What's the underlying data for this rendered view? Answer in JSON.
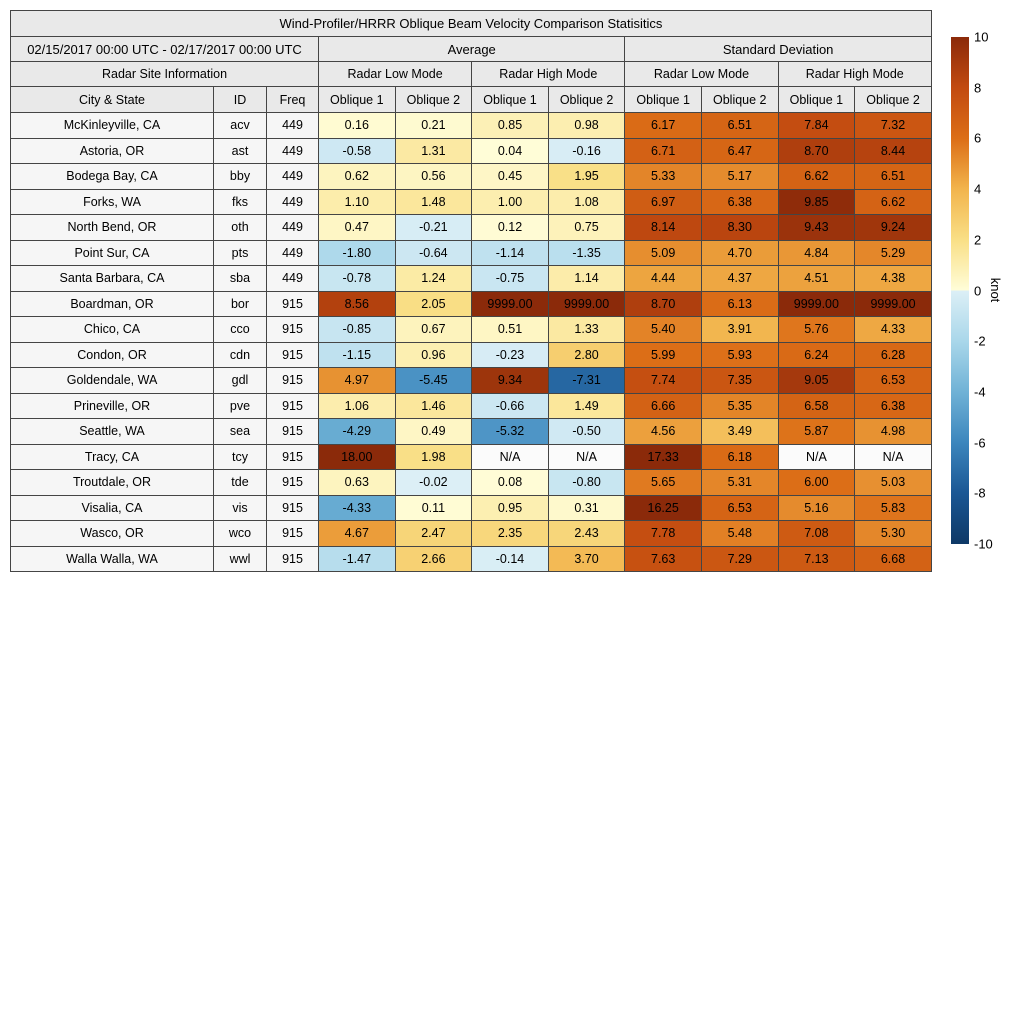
{
  "title": "Wind-Profiler/HRRR Oblique Beam Velocity Comparison Statisitics",
  "period": "02/15/2017 00:00 UTC - 02/17/2017 00:00 UTC",
  "header": {
    "average": "Average",
    "std_dev": "Standard Deviation",
    "site_info": "Radar Site Information",
    "low_mode": "Radar Low Mode",
    "high_mode": "Radar High Mode",
    "city": "City & State",
    "id": "ID",
    "freq": "Freq",
    "oblique1": "Oblique 1",
    "oblique2": "Oblique 2"
  },
  "colors": {
    "header_bg": "#e9e9e9",
    "site_bg": "#f6f6f6",
    "na_bg": "#fbfbfb",
    "border": "#454545",
    "text": "#000000",
    "page_bg": "#ffffff"
  },
  "colorbar": {
    "label": "knot",
    "min": -10,
    "max": 10,
    "ticks": [
      10,
      8,
      6,
      4,
      2,
      0,
      -2,
      -4,
      -6,
      -8,
      -10
    ],
    "stops": [
      {
        "v": -10,
        "c": "#0E3866"
      },
      {
        "v": -8,
        "c": "#1A5794"
      },
      {
        "v": -6,
        "c": "#3C86BD"
      },
      {
        "v": -4,
        "c": "#70B2D6"
      },
      {
        "v": -2,
        "c": "#A9D7EA"
      },
      {
        "v": -0.02,
        "c": "#DCEFF6"
      },
      {
        "v": 0.02,
        "c": "#FFFDD8"
      },
      {
        "v": 2,
        "c": "#F9DF86"
      },
      {
        "v": 4,
        "c": "#F2B44C"
      },
      {
        "v": 6,
        "c": "#DC6E17"
      },
      {
        "v": 8,
        "c": "#C24A10"
      },
      {
        "v": 10,
        "c": "#8B2A0A"
      }
    ]
  },
  "chart_data": {
    "type": "heatmap",
    "title": "Wind-Profiler/HRRR Oblique Beam Velocity Comparison Statisitics",
    "period": "02/15/2017 00:00 UTC - 02/17/2017 00:00 UTC",
    "unit": "knot",
    "value_range": [
      -10,
      10
    ],
    "value_columns": [
      "Average Radar Low Mode Oblique 1",
      "Average Radar Low Mode Oblique 2",
      "Average Radar High Mode Oblique 1",
      "Average Radar High Mode Oblique 2",
      "Standard Deviation Radar Low Mode Oblique 1",
      "Standard Deviation Radar Low Mode Oblique 2",
      "Standard Deviation Radar High Mode Oblique 1",
      "Standard Deviation Radar High Mode Oblique 2"
    ],
    "rows": [
      {
        "city": "McKinleyville, CA",
        "id": "acv",
        "freq": "449",
        "values": [
          "0.16",
          "0.21",
          "0.85",
          "0.98",
          "6.17",
          "6.51",
          "7.84",
          "7.32"
        ]
      },
      {
        "city": "Astoria, OR",
        "id": "ast",
        "freq": "449",
        "values": [
          "-0.58",
          "1.31",
          "0.04",
          "-0.16",
          "6.71",
          "6.47",
          "8.70",
          "8.44"
        ]
      },
      {
        "city": "Bodega Bay, CA",
        "id": "bby",
        "freq": "449",
        "values": [
          "0.62",
          "0.56",
          "0.45",
          "1.95",
          "5.33",
          "5.17",
          "6.62",
          "6.51"
        ]
      },
      {
        "city": "Forks, WA",
        "id": "fks",
        "freq": "449",
        "values": [
          "1.10",
          "1.48",
          "1.00",
          "1.08",
          "6.97",
          "6.38",
          "9.85",
          "6.62"
        ]
      },
      {
        "city": "North Bend, OR",
        "id": "oth",
        "freq": "449",
        "values": [
          "0.47",
          "-0.21",
          "0.12",
          "0.75",
          "8.14",
          "8.30",
          "9.43",
          "9.24"
        ]
      },
      {
        "city": "Point Sur, CA",
        "id": "pts",
        "freq": "449",
        "values": [
          "-1.80",
          "-0.64",
          "-1.14",
          "-1.35",
          "5.09",
          "4.70",
          "4.84",
          "5.29"
        ]
      },
      {
        "city": "Santa Barbara, CA",
        "id": "sba",
        "freq": "449",
        "values": [
          "-0.78",
          "1.24",
          "-0.75",
          "1.14",
          "4.44",
          "4.37",
          "4.51",
          "4.38"
        ]
      },
      {
        "city": "Boardman, OR",
        "id": "bor",
        "freq": "915",
        "values": [
          "8.56",
          "2.05",
          "9999.00",
          "9999.00",
          "8.70",
          "6.13",
          "9999.00",
          "9999.00"
        ]
      },
      {
        "city": "Chico, CA",
        "id": "cco",
        "freq": "915",
        "values": [
          "-0.85",
          "0.67",
          "0.51",
          "1.33",
          "5.40",
          "3.91",
          "5.76",
          "4.33"
        ]
      },
      {
        "city": "Condon, OR",
        "id": "cdn",
        "freq": "915",
        "values": [
          "-1.15",
          "0.96",
          "-0.23",
          "2.80",
          "5.99",
          "5.93",
          "6.24",
          "6.28"
        ]
      },
      {
        "city": "Goldendale, WA",
        "id": "gdl",
        "freq": "915",
        "values": [
          "4.97",
          "-5.45",
          "9.34",
          "-7.31",
          "7.74",
          "7.35",
          "9.05",
          "6.53"
        ]
      },
      {
        "city": "Prineville, OR",
        "id": "pve",
        "freq": "915",
        "values": [
          "1.06",
          "1.46",
          "-0.66",
          "1.49",
          "6.66",
          "5.35",
          "6.58",
          "6.38"
        ]
      },
      {
        "city": "Seattle, WA",
        "id": "sea",
        "freq": "915",
        "values": [
          "-4.29",
          "0.49",
          "-5.32",
          "-0.50",
          "4.56",
          "3.49",
          "5.87",
          "4.98"
        ]
      },
      {
        "city": "Tracy, CA",
        "id": "tcy",
        "freq": "915",
        "values": [
          "18.00",
          "1.98",
          "N/A",
          "N/A",
          "17.33",
          "6.18",
          "N/A",
          "N/A"
        ]
      },
      {
        "city": "Troutdale, OR",
        "id": "tde",
        "freq": "915",
        "values": [
          "0.63",
          "-0.02",
          "0.08",
          "-0.80",
          "5.65",
          "5.31",
          "6.00",
          "5.03"
        ]
      },
      {
        "city": "Visalia, CA",
        "id": "vis",
        "freq": "915",
        "values": [
          "-4.33",
          "0.11",
          "0.95",
          "0.31",
          "16.25",
          "6.53",
          "5.16",
          "5.83"
        ]
      },
      {
        "city": "Wasco, OR",
        "id": "wco",
        "freq": "915",
        "values": [
          "4.67",
          "2.47",
          "2.35",
          "2.43",
          "7.78",
          "5.48",
          "7.08",
          "5.30"
        ]
      },
      {
        "city": "Walla Walla, WA",
        "id": "wwl",
        "freq": "915",
        "values": [
          "-1.47",
          "2.66",
          "-0.14",
          "3.70",
          "7.63",
          "7.29",
          "7.13",
          "6.68"
        ]
      }
    ]
  }
}
